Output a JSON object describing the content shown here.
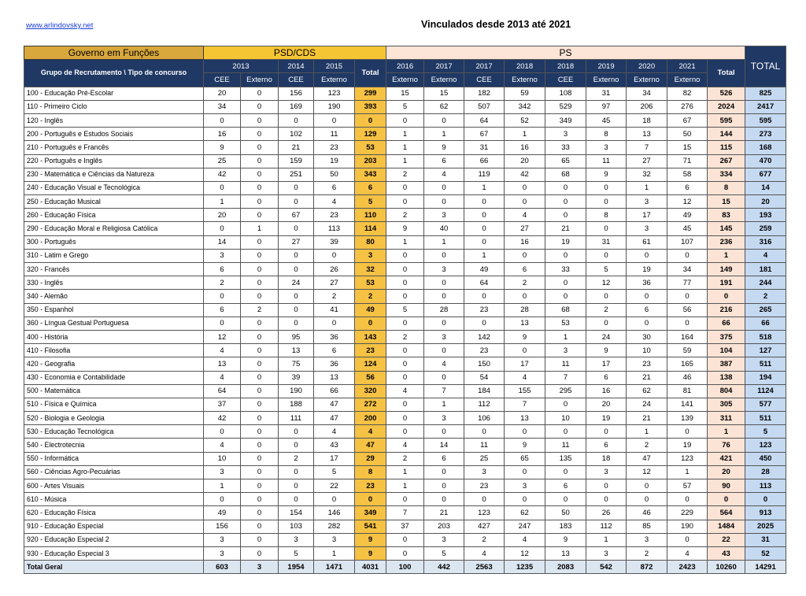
{
  "header": {
    "link": "www.arlindovsky.net",
    "title": "Vinculados desde 2013 até 2021"
  },
  "table": {
    "group_headers": [
      "Governo em Funções",
      "PSD/CDS",
      "PS",
      "TOTAL"
    ],
    "row_header": "Grupo de Recrutamento \\ Tipo de concurso",
    "years": [
      "2013",
      "2014",
      "2015",
      "Total",
      "2016",
      "2017",
      "2017",
      "2018",
      "2018",
      "2019",
      "2020",
      "2021",
      "Total"
    ],
    "types": [
      "CEE",
      "Externo",
      "CEE",
      "Externo",
      "Externo",
      "Externo",
      "CEE",
      "Externo",
      "CEE",
      "Externo",
      "Externo",
      "Externo"
    ],
    "rows": [
      [
        "100 - Educação Pré-Escolar",
        20,
        0,
        156,
        123,
        299,
        15,
        15,
        182,
        59,
        108,
        31,
        34,
        82,
        526,
        825
      ],
      [
        "110 - Primeiro Ciclo",
        34,
        0,
        169,
        190,
        393,
        5,
        62,
        507,
        342,
        529,
        97,
        206,
        276,
        2024,
        2417
      ],
      [
        "120 - Inglês",
        0,
        0,
        0,
        0,
        0,
        0,
        0,
        64,
        52,
        349,
        45,
        18,
        67,
        595,
        595
      ],
      [
        "200 - Português e Estudos Sociais",
        16,
        0,
        102,
        11,
        129,
        1,
        1,
        67,
        1,
        3,
        8,
        13,
        50,
        144,
        273
      ],
      [
        "210 - Português e Francês",
        9,
        0,
        21,
        23,
        53,
        1,
        9,
        31,
        16,
        33,
        3,
        7,
        15,
        115,
        168
      ],
      [
        "220 - Português e Inglês",
        25,
        0,
        159,
        19,
        203,
        1,
        6,
        66,
        20,
        65,
        11,
        27,
        71,
        267,
        470
      ],
      [
        "230 - Matemática e Ciências da Natureza",
        42,
        0,
        251,
        50,
        343,
        2,
        4,
        119,
        42,
        68,
        9,
        32,
        58,
        334,
        677
      ],
      [
        "240 - Educação Visual e Tecnológica",
        0,
        0,
        0,
        6,
        6,
        0,
        0,
        1,
        0,
        0,
        0,
        1,
        6,
        8,
        14
      ],
      [
        "250 - Educação Musical",
        1,
        0,
        0,
        4,
        5,
        0,
        0,
        0,
        0,
        0,
        0,
        3,
        12,
        15,
        20
      ],
      [
        "260 - Educação Física",
        20,
        0,
        67,
        23,
        110,
        2,
        3,
        0,
        4,
        0,
        8,
        17,
        49,
        83,
        193
      ],
      [
        "290 - Educação Moral e Religiosa Católica",
        0,
        1,
        0,
        113,
        114,
        9,
        40,
        0,
        27,
        21,
        0,
        3,
        45,
        145,
        259
      ],
      [
        "300 - Português",
        14,
        0,
        27,
        39,
        80,
        1,
        1,
        0,
        16,
        19,
        31,
        61,
        107,
        236,
        316
      ],
      [
        "310 - Latim e Grego",
        3,
        0,
        0,
        0,
        3,
        0,
        0,
        1,
        0,
        0,
        0,
        0,
        0,
        1,
        4
      ],
      [
        "320 - Francês",
        6,
        0,
        0,
        26,
        32,
        0,
        3,
        49,
        6,
        33,
        5,
        19,
        34,
        149,
        181
      ],
      [
        "330 - Inglês",
        2,
        0,
        24,
        27,
        53,
        0,
        0,
        64,
        2,
        0,
        12,
        36,
        77,
        191,
        244
      ],
      [
        "340 - Alemão",
        0,
        0,
        0,
        2,
        2,
        0,
        0,
        0,
        0,
        0,
        0,
        0,
        0,
        0,
        2
      ],
      [
        "350 - Espanhol",
        6,
        2,
        0,
        41,
        49,
        5,
        28,
        23,
        28,
        68,
        2,
        6,
        56,
        216,
        265
      ],
      [
        "360 - Língua Gestual Portuguesa",
        0,
        0,
        0,
        0,
        0,
        0,
        0,
        0,
        13,
        53,
        0,
        0,
        0,
        66,
        66
      ],
      [
        "400 - História",
        12,
        0,
        95,
        36,
        143,
        2,
        3,
        142,
        9,
        1,
        24,
        30,
        164,
        375,
        518
      ],
      [
        "410 - Filosofia",
        4,
        0,
        13,
        6,
        23,
        0,
        0,
        23,
        0,
        3,
        9,
        10,
        59,
        104,
        127
      ],
      [
        "420 - Geografia",
        13,
        0,
        75,
        36,
        124,
        0,
        4,
        150,
        17,
        11,
        17,
        23,
        165,
        387,
        511
      ],
      [
        "430 - Economia  e Contabilidade",
        4,
        0,
        39,
        13,
        56,
        0,
        0,
        54,
        4,
        7,
        6,
        21,
        46,
        138,
        194
      ],
      [
        "500 - Matemática",
        64,
        0,
        190,
        66,
        320,
        4,
        7,
        184,
        155,
        295,
        16,
        62,
        81,
        804,
        1124
      ],
      [
        "510 - Física e Química",
        37,
        0,
        188,
        47,
        272,
        0,
        1,
        112,
        7,
        0,
        20,
        24,
        141,
        305,
        577
      ],
      [
        "520 - Biologia e Geologia",
        42,
        0,
        111,
        47,
        200,
        0,
        3,
        106,
        13,
        10,
        19,
        21,
        139,
        311,
        511
      ],
      [
        "530 - Educação Tecnológica",
        0,
        0,
        0,
        4,
        4,
        0,
        0,
        0,
        0,
        0,
        0,
        1,
        0,
        1,
        5
      ],
      [
        "540 - Electrotecnia",
        4,
        0,
        0,
        43,
        47,
        4,
        14,
        11,
        9,
        11,
        6,
        2,
        19,
        76,
        123
      ],
      [
        "550 - Informática",
        10,
        0,
        2,
        17,
        29,
        2,
        6,
        25,
        65,
        135,
        18,
        47,
        123,
        421,
        450
      ],
      [
        "560 - Ciências Agro-Pecuárias",
        3,
        0,
        0,
        5,
        8,
        1,
        0,
        3,
        0,
        0,
        3,
        12,
        1,
        20,
        28
      ],
      [
        "600 - Artes Visuais",
        1,
        0,
        0,
        22,
        23,
        1,
        0,
        23,
        3,
        6,
        0,
        0,
        57,
        90,
        113
      ],
      [
        "610 - Música",
        0,
        0,
        0,
        0,
        0,
        0,
        0,
        0,
        0,
        0,
        0,
        0,
        0,
        0,
        0
      ],
      [
        "620 - Educação Física",
        49,
        0,
        154,
        146,
        349,
        7,
        21,
        123,
        62,
        50,
        26,
        46,
        229,
        564,
        913
      ],
      [
        "910 - Educação Especial",
        156,
        0,
        103,
        282,
        541,
        37,
        203,
        427,
        247,
        183,
        112,
        85,
        190,
        1484,
        2025
      ],
      [
        "920 - Educação Especial 2",
        3,
        0,
        3,
        3,
        9,
        0,
        3,
        2,
        4,
        9,
        1,
        3,
        0,
        22,
        31
      ],
      [
        "930 - Educação Especial 3",
        3,
        0,
        5,
        1,
        9,
        0,
        5,
        4,
        12,
        13,
        3,
        2,
        4,
        43,
        52
      ],
      [
        "Total Geral",
        603,
        3,
        1954,
        1471,
        4031,
        100,
        442,
        2563,
        1235,
        2083,
        542,
        872,
        2423,
        10260,
        14291
      ]
    ]
  }
}
